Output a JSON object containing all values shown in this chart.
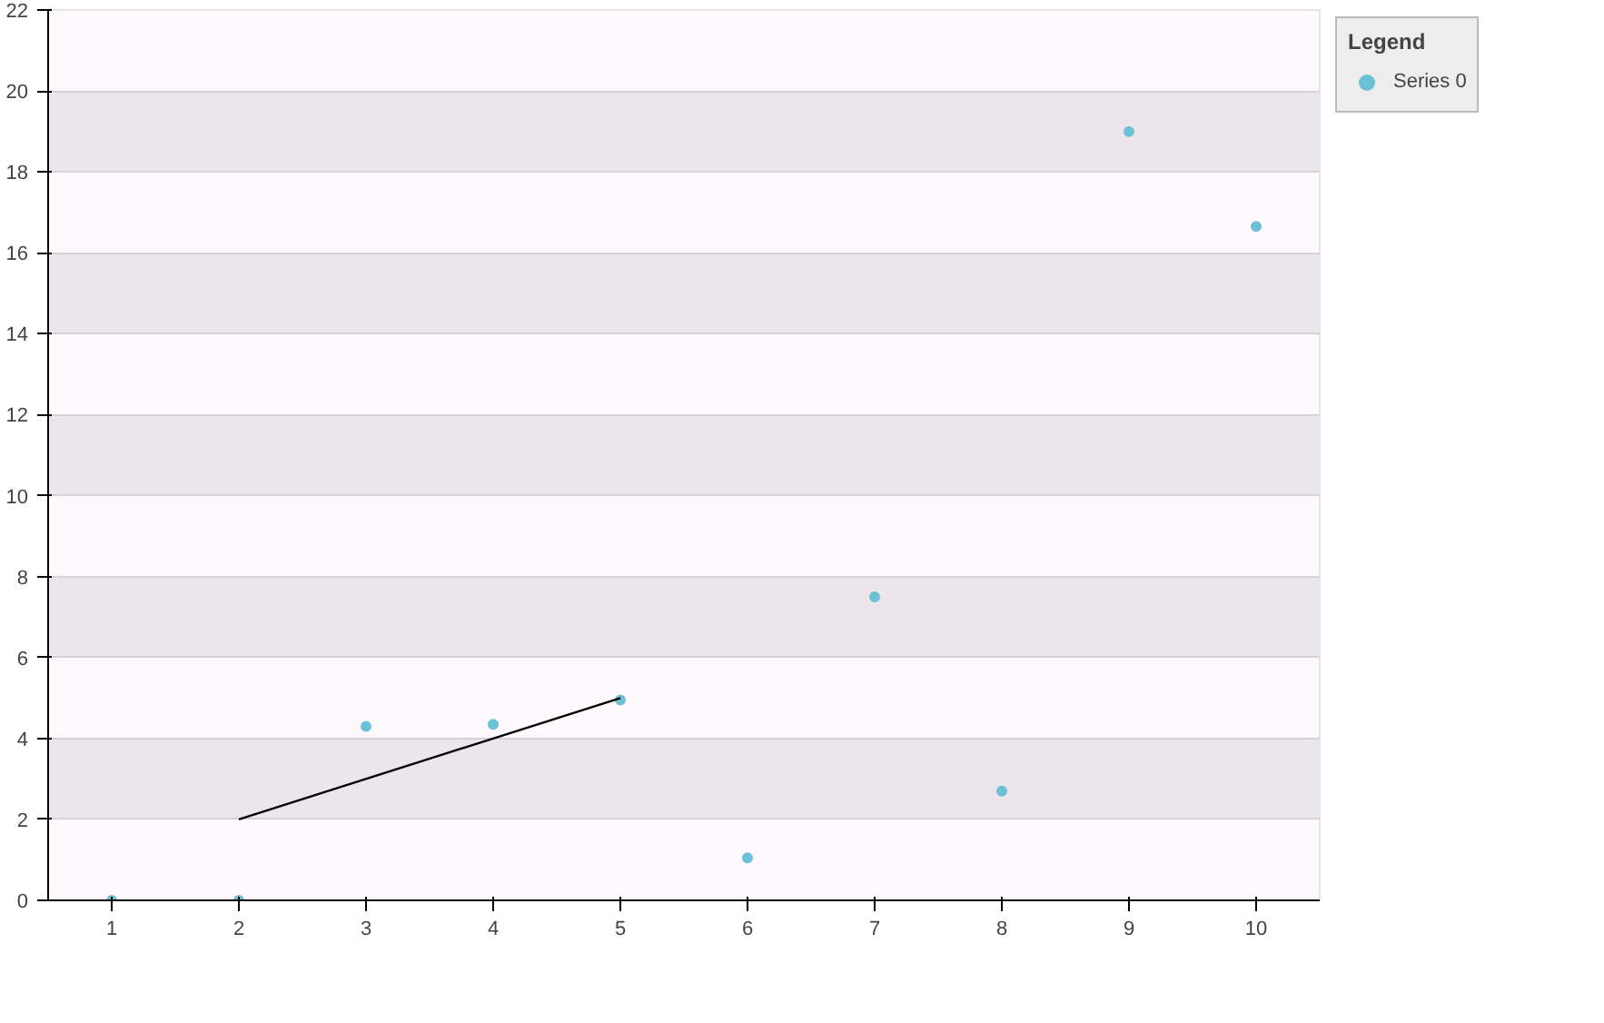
{
  "chart_data": {
    "type": "scatter",
    "legend_title": "Legend",
    "x": [
      1,
      2,
      3,
      4,
      5,
      6,
      7,
      8,
      9,
      10
    ],
    "series": [
      {
        "name": "Series 0",
        "color": "#6cc0d8",
        "values": [
          0,
          0,
          4.3,
          4.35,
          4.95,
          1.05,
          7.5,
          2.7,
          19,
          16.65
        ]
      },
      {
        "type": "line",
        "color": "#000000",
        "marker": "none",
        "x": [
          2,
          5
        ],
        "values": [
          2,
          5
        ]
      }
    ],
    "xlim": [
      0.5,
      10.5
    ],
    "xticks": [
      1,
      2,
      3,
      4,
      5,
      6,
      7,
      8,
      9,
      10
    ],
    "ylim": [
      0,
      22
    ],
    "yticks": [
      0,
      2,
      4,
      6,
      8,
      10,
      12,
      14,
      16,
      18,
      20,
      22
    ],
    "grid": "y",
    "legend": "right",
    "marker": "circle"
  }
}
